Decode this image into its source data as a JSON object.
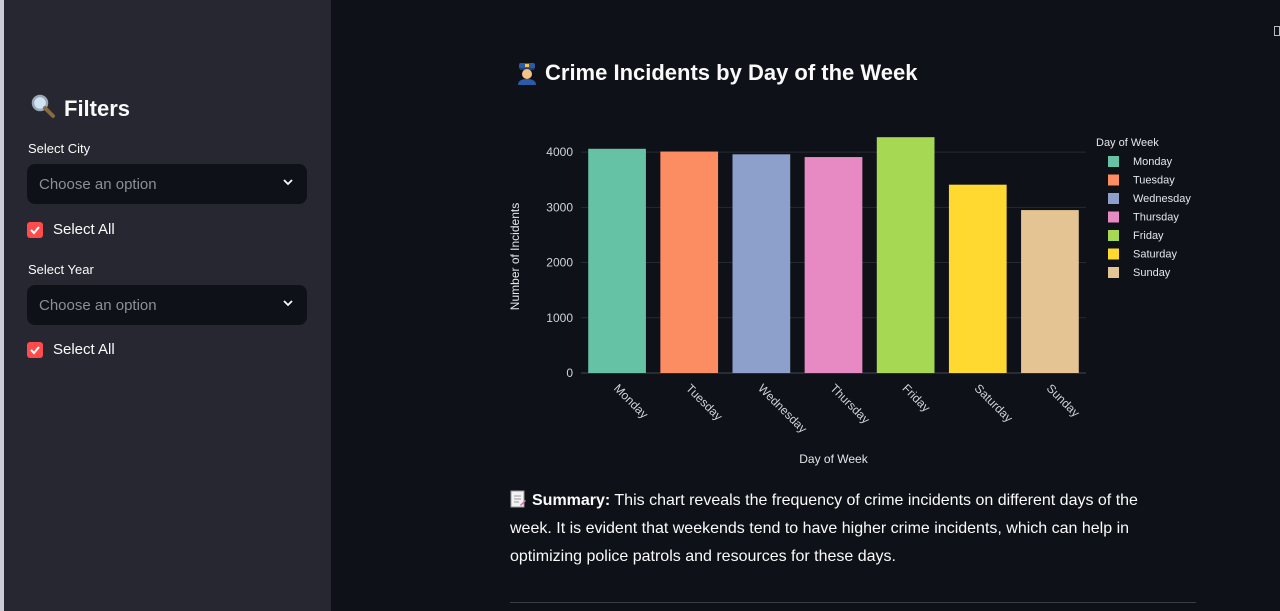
{
  "sidebar": {
    "header": "Filters",
    "city": {
      "label": "Select City",
      "placeholder": "Choose an option",
      "select_all_label": "Select All",
      "select_all_checked": true
    },
    "year": {
      "label": "Select Year",
      "placeholder": "Choose an option",
      "select_all_label": "Select All",
      "select_all_checked": true
    }
  },
  "main": {
    "title": "Crime Incidents by Day of the Week",
    "summary_label": "Summary:",
    "summary_text": " This chart reveals the frequency of crime incidents on different days of the week. It is evident that weekends tend to have higher crime incidents, which can help in optimizing police patrols and resources for these days."
  },
  "chart_data": {
    "type": "bar",
    "categories": [
      "Monday",
      "Tuesday",
      "Wednesday",
      "Thursday",
      "Friday",
      "Saturday",
      "Sunday"
    ],
    "values": [
      4060,
      4010,
      3960,
      3910,
      4270,
      3410,
      2950
    ],
    "colors": [
      "#66c2a5",
      "#fc8d62",
      "#8da0cb",
      "#e78ac3",
      "#a6d854",
      "#ffd92f",
      "#e5c494"
    ],
    "xlabel": "Day of Week",
    "ylabel": "Number of Incidents",
    "ylim": [
      0,
      4400
    ],
    "yticks": [
      0,
      1000,
      2000,
      3000,
      4000
    ],
    "grid": true,
    "legend": {
      "title": "Day of Week",
      "position": "right"
    }
  },
  "colors": {
    "accent": "#ff4b4b",
    "sidebar_bg": "#262730",
    "main_bg": "#0e1117"
  }
}
